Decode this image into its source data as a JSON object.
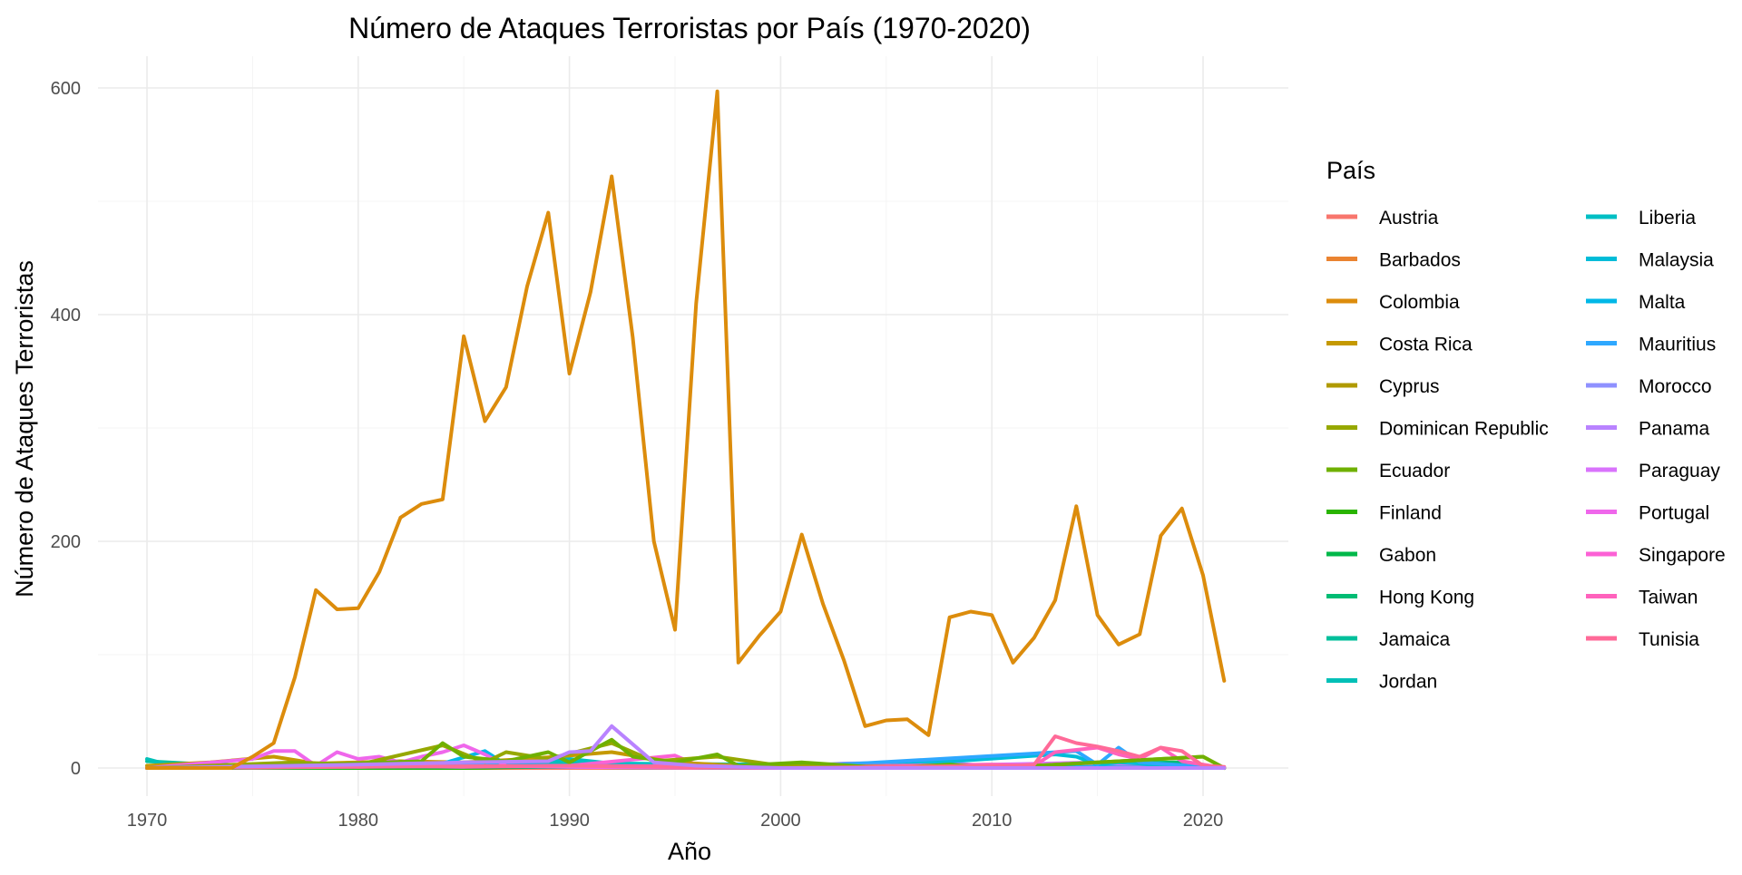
{
  "chart_data": {
    "type": "line",
    "title": "Número de Ataques Terroristas por País (1970-2020)",
    "xlabel": "Año",
    "ylabel": "Número de Ataques Terroristas",
    "xlim": [
      1970,
      2021
    ],
    "ylim": [
      0,
      600
    ],
    "x_ticks": [
      1970,
      1980,
      1990,
      2000,
      2010,
      2020
    ],
    "y_ticks": [
      0,
      200,
      400,
      600
    ],
    "grid": true,
    "legend": {
      "title": "País",
      "placement": "right",
      "columns": 2
    },
    "series": [
      {
        "name": "Austria",
        "color": "#F8766D",
        "points": [
          [
            1970,
            0
          ],
          [
            1972,
            1
          ],
          [
            1975,
            0
          ],
          [
            1980,
            1
          ],
          [
            1982,
            2
          ],
          [
            1985,
            1
          ],
          [
            1990,
            0
          ],
          [
            2000,
            0
          ],
          [
            2010,
            0
          ],
          [
            2021,
            0
          ]
        ]
      },
      {
        "name": "Barbados",
        "color": "#EA8331",
        "points": [
          [
            1970,
            0
          ],
          [
            1976,
            1
          ],
          [
            1980,
            0
          ],
          [
            2000,
            0
          ],
          [
            2021,
            0
          ]
        ]
      },
      {
        "name": "Colombia",
        "color": "#DC8C0C",
        "points": [
          [
            1970,
            0
          ],
          [
            1971,
            0
          ],
          [
            1972,
            0
          ],
          [
            1973,
            0
          ],
          [
            1974,
            0
          ],
          [
            1975,
            10
          ],
          [
            1976,
            22
          ],
          [
            1977,
            80
          ],
          [
            1978,
            157
          ],
          [
            1979,
            140
          ],
          [
            1980,
            141
          ],
          [
            1981,
            173
          ],
          [
            1982,
            221
          ],
          [
            1983,
            233
          ],
          [
            1984,
            237
          ],
          [
            1985,
            381
          ],
          [
            1986,
            306
          ],
          [
            1987,
            336
          ],
          [
            1988,
            425
          ],
          [
            1989,
            490
          ],
          [
            1990,
            348
          ],
          [
            1991,
            420
          ],
          [
            1992,
            522
          ],
          [
            1993,
            380
          ],
          [
            1994,
            200
          ],
          [
            1995,
            122
          ],
          [
            1996,
            410
          ],
          [
            1997,
            597
          ],
          [
            1998,
            93
          ],
          [
            1999,
            117
          ],
          [
            2000,
            138
          ],
          [
            2001,
            206
          ],
          [
            2002,
            145
          ],
          [
            2003,
            95
          ],
          [
            2004,
            37
          ],
          [
            2005,
            42
          ],
          [
            2006,
            43
          ],
          [
            2007,
            29
          ],
          [
            2008,
            133
          ],
          [
            2009,
            138
          ],
          [
            2010,
            135
          ],
          [
            2011,
            93
          ],
          [
            2012,
            115
          ],
          [
            2013,
            148
          ],
          [
            2014,
            231
          ],
          [
            2015,
            135
          ],
          [
            2016,
            109
          ],
          [
            2017,
            118
          ],
          [
            2018,
            205
          ],
          [
            2019,
            229
          ],
          [
            2020,
            170
          ],
          [
            2021,
            77
          ]
        ]
      },
      {
        "name": "Costa Rica",
        "color": "#C59900",
        "points": [
          [
            1970,
            2
          ],
          [
            1973,
            5
          ],
          [
            1976,
            10
          ],
          [
            1978,
            4
          ],
          [
            1982,
            6
          ],
          [
            1985,
            5
          ],
          [
            1988,
            8
          ],
          [
            1992,
            14
          ],
          [
            1995,
            5
          ],
          [
            1998,
            2
          ],
          [
            2005,
            1
          ],
          [
            2021,
            0
          ]
        ]
      },
      {
        "name": "Cyprus",
        "color": "#B09A00",
        "points": [
          [
            1970,
            0
          ],
          [
            1974,
            2
          ],
          [
            1978,
            3
          ],
          [
            1980,
            1
          ],
          [
            1985,
            2
          ],
          [
            1990,
            1
          ],
          [
            2000,
            0
          ],
          [
            2021,
            0
          ]
        ]
      },
      {
        "name": "Dominican Republic",
        "color": "#96A800",
        "points": [
          [
            1970,
            0
          ],
          [
            1977,
            5
          ],
          [
            1980,
            3
          ],
          [
            1984,
            20
          ],
          [
            1986,
            5
          ],
          [
            1987,
            14
          ],
          [
            1989,
            8
          ],
          [
            1992,
            22
          ],
          [
            1994,
            6
          ],
          [
            1997,
            10
          ],
          [
            2000,
            2
          ],
          [
            2010,
            0
          ],
          [
            2020,
            10
          ],
          [
            2021,
            0
          ]
        ]
      },
      {
        "name": "Ecuador",
        "color": "#6FB000",
        "points": [
          [
            1970,
            0
          ],
          [
            1978,
            3
          ],
          [
            1983,
            6
          ],
          [
            1984,
            22
          ],
          [
            1985,
            10
          ],
          [
            1987,
            6
          ],
          [
            1989,
            14
          ],
          [
            1990,
            5
          ],
          [
            1992,
            25
          ],
          [
            1993,
            10
          ],
          [
            1995,
            5
          ],
          [
            1997,
            12
          ],
          [
            1998,
            2
          ],
          [
            2001,
            5
          ],
          [
            2005,
            0
          ],
          [
            2008,
            3
          ],
          [
            2010,
            0
          ],
          [
            2015,
            5
          ],
          [
            2018,
            8
          ],
          [
            2020,
            10
          ],
          [
            2021,
            0
          ]
        ]
      },
      {
        "name": "Finland",
        "color": "#2AB400",
        "points": [
          [
            1970,
            0
          ],
          [
            1985,
            0
          ],
          [
            1990,
            1
          ],
          [
            2000,
            0
          ],
          [
            2021,
            0
          ]
        ]
      },
      {
        "name": "Gabon",
        "color": "#00B84A",
        "points": [
          [
            1970,
            0
          ],
          [
            1990,
            1
          ],
          [
            1992,
            2
          ],
          [
            2000,
            0
          ],
          [
            2021,
            0
          ]
        ]
      },
      {
        "name": "Hong Kong",
        "color": "#00BC74",
        "points": [
          [
            1970,
            0
          ],
          [
            1980,
            2
          ],
          [
            1990,
            1
          ],
          [
            2000,
            0
          ],
          [
            2019,
            5
          ],
          [
            2021,
            0
          ]
        ]
      },
      {
        "name": "Jamaica",
        "color": "#00BF9B",
        "points": [
          [
            1970,
            6
          ],
          [
            1972,
            4
          ],
          [
            1975,
            2
          ],
          [
            1980,
            3
          ],
          [
            1985,
            2
          ],
          [
            1990,
            4
          ],
          [
            1995,
            1
          ],
          [
            2000,
            0
          ],
          [
            2021,
            0
          ]
        ]
      },
      {
        "name": "Jordan",
        "color": "#00C0B7",
        "points": [
          [
            1970,
            8
          ],
          [
            1971,
            3
          ],
          [
            1972,
            4
          ],
          [
            1975,
            2
          ],
          [
            1980,
            3
          ],
          [
            1985,
            2
          ],
          [
            1990,
            5
          ],
          [
            1995,
            1
          ],
          [
            2000,
            0
          ],
          [
            2021,
            0
          ]
        ]
      },
      {
        "name": "Liberia",
        "color": "#00BFC4",
        "points": [
          [
            1970,
            0
          ],
          [
            1980,
            2
          ],
          [
            1985,
            1
          ],
          [
            1990,
            8
          ],
          [
            1992,
            4
          ],
          [
            2000,
            3
          ],
          [
            2005,
            0
          ],
          [
            2021,
            0
          ]
        ]
      },
      {
        "name": "Malaysia",
        "color": "#00BCD8",
        "points": [
          [
            1970,
            0
          ],
          [
            1975,
            3
          ],
          [
            1980,
            2
          ],
          [
            1985,
            4
          ],
          [
            1990,
            2
          ],
          [
            2000,
            1
          ],
          [
            2005,
            2
          ],
          [
            2013,
            12
          ],
          [
            2014,
            10
          ],
          [
            2015,
            3
          ],
          [
            2016,
            5
          ],
          [
            2021,
            0
          ]
        ]
      },
      {
        "name": "Malta",
        "color": "#00B8E7",
        "points": [
          [
            1970,
            0
          ],
          [
            1980,
            2
          ],
          [
            1984,
            4
          ],
          [
            1986,
            15
          ],
          [
            1987,
            3
          ],
          [
            1990,
            2
          ],
          [
            2000,
            0
          ],
          [
            2010,
            1
          ],
          [
            2021,
            0
          ]
        ]
      },
      {
        "name": "Mauritius",
        "color": "#2EA8FF",
        "points": [
          [
            1970,
            0
          ],
          [
            1985,
            2
          ],
          [
            1990,
            1
          ],
          [
            2000,
            0
          ],
          [
            2014,
            15
          ],
          [
            2015,
            3
          ],
          [
            2016,
            18
          ],
          [
            2017,
            5
          ],
          [
            2021,
            0
          ]
        ]
      },
      {
        "name": "Morocco",
        "color": "#8F91FF",
        "points": [
          [
            1970,
            0
          ],
          [
            1980,
            2
          ],
          [
            1985,
            3
          ],
          [
            1990,
            2
          ],
          [
            2000,
            1
          ],
          [
            2003,
            4
          ],
          [
            2007,
            5
          ],
          [
            2010,
            2
          ],
          [
            2013,
            4
          ],
          [
            2015,
            3
          ],
          [
            2021,
            0
          ]
        ]
      },
      {
        "name": "Panama",
        "color": "#B983FF",
        "points": [
          [
            1970,
            0
          ],
          [
            1980,
            3
          ],
          [
            1985,
            5
          ],
          [
            1989,
            6
          ],
          [
            1990,
            14
          ],
          [
            1991,
            15
          ],
          [
            1992,
            37
          ],
          [
            1994,
            5
          ],
          [
            1996,
            2
          ],
          [
            2000,
            0
          ],
          [
            2021,
            0
          ]
        ]
      },
      {
        "name": "Paraguay",
        "color": "#D973FC",
        "points": [
          [
            1970,
            0
          ],
          [
            1980,
            2
          ],
          [
            1985,
            4
          ],
          [
            1990,
            3
          ],
          [
            1995,
            2
          ],
          [
            2000,
            1
          ],
          [
            2010,
            3
          ],
          [
            2015,
            5
          ],
          [
            2018,
            2
          ],
          [
            2021,
            0
          ]
        ]
      },
      {
        "name": "Portugal",
        "color": "#EF67EB",
        "points": [
          [
            1970,
            0
          ],
          [
            1975,
            8
          ],
          [
            1976,
            15
          ],
          [
            1977,
            15
          ],
          [
            1978,
            2
          ],
          [
            1979,
            14
          ],
          [
            1980,
            8
          ],
          [
            1981,
            10
          ],
          [
            1982,
            5
          ],
          [
            1983,
            10
          ],
          [
            1984,
            14
          ],
          [
            1985,
            20
          ],
          [
            1986,
            12
          ],
          [
            1987,
            2
          ],
          [
            1990,
            1
          ],
          [
            2000,
            0
          ],
          [
            2021,
            0
          ]
        ]
      },
      {
        "name": "Singapore",
        "color": "#FC61D5",
        "points": [
          [
            1970,
            0
          ],
          [
            1975,
            2
          ],
          [
            1980,
            1
          ],
          [
            1985,
            3
          ],
          [
            1990,
            2
          ],
          [
            1995,
            11
          ],
          [
            1996,
            3
          ],
          [
            2000,
            1
          ],
          [
            2021,
            0
          ]
        ]
      },
      {
        "name": "Taiwan",
        "color": "#FF62BC",
        "points": [
          [
            1970,
            0
          ],
          [
            1980,
            2
          ],
          [
            1985,
            1
          ],
          [
            1990,
            2
          ],
          [
            2000,
            1
          ],
          [
            2010,
            3
          ],
          [
            2012,
            2
          ],
          [
            2013,
            14
          ],
          [
            2014,
            16
          ],
          [
            2015,
            18
          ],
          [
            2016,
            12
          ],
          [
            2017,
            8
          ],
          [
            2018,
            18
          ],
          [
            2019,
            6
          ],
          [
            2021,
            0
          ]
        ]
      },
      {
        "name": "Tunisia",
        "color": "#FF6A98",
        "points": [
          [
            1970,
            0
          ],
          [
            1980,
            1
          ],
          [
            1990,
            2
          ],
          [
            2000,
            0
          ],
          [
            2011,
            2
          ],
          [
            2012,
            3
          ],
          [
            2013,
            28
          ],
          [
            2014,
            22
          ],
          [
            2015,
            19
          ],
          [
            2016,
            15
          ],
          [
            2017,
            10
          ],
          [
            2018,
            18
          ],
          [
            2019,
            15
          ],
          [
            2020,
            2
          ],
          [
            2021,
            1
          ]
        ]
      }
    ]
  }
}
